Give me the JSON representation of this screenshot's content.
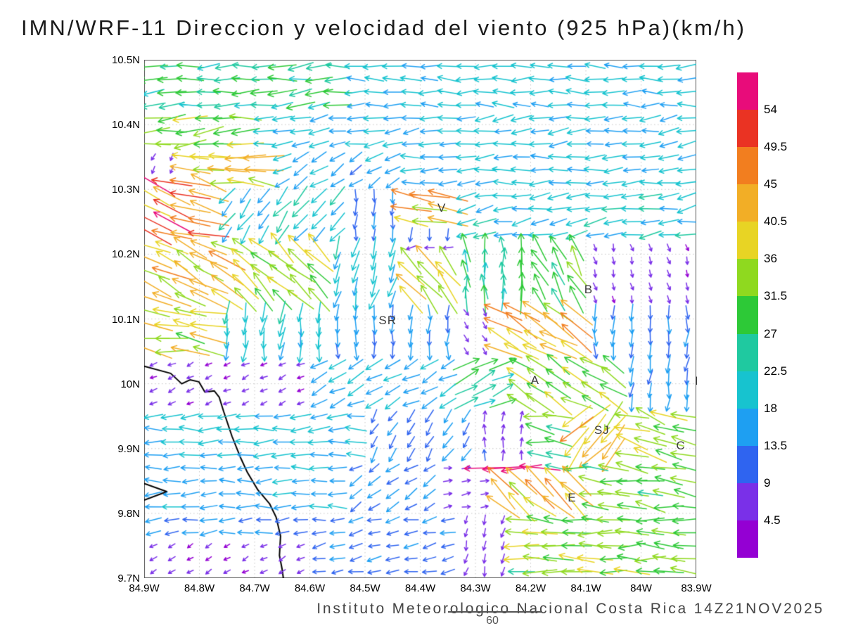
{
  "title": "IMN/WRF-11 Direccion y velocidad del viento (925 hPa)(km/h)",
  "footer": {
    "credit": "Instituto Meteorologico Nacional Costa Rica 14Z21NOV2025",
    "frame_number": "60"
  },
  "chart_data": {
    "type": "scatter",
    "subtype": "wind-vector-field",
    "title": "IMN/WRF-11 Direccion y velocidad del viento (925 hPa)(km/h)",
    "xlim": [
      -84.9,
      -83.9
    ],
    "ylim": [
      9.7,
      10.5
    ],
    "grid": true,
    "grid_cols": 30,
    "grid_rows": 40,
    "x_tick_values": [
      -84.9,
      -84.8,
      -84.7,
      -84.6,
      -84.5,
      -84.4,
      -84.3,
      -84.2,
      -84.1,
      -84.0,
      -83.9
    ],
    "x_tick_labels": [
      "84.9W",
      "84.8W",
      "84.7W",
      "84.6W",
      "84.5W",
      "84.4W",
      "84.3W",
      "84.2W",
      "84.1W",
      "84W",
      "83.9W"
    ],
    "y_tick_values": [
      10.5,
      10.4,
      10.3,
      10.2,
      10.1,
      10.0,
      9.9,
      9.8,
      9.7
    ],
    "y_tick_labels": [
      "10.5N",
      "10.4N",
      "10.3N",
      "10.2N",
      "10.1N",
      "10N",
      "9.9N",
      "9.8N",
      "9.7N"
    ],
    "colorbar": {
      "ticks_top_to_bottom": [
        54,
        49.5,
        45,
        40.5,
        36,
        31.5,
        27,
        22.5,
        18,
        13.5,
        9,
        4.5
      ],
      "colors_low_to_high": [
        "#9400d3",
        "#7a30e8",
        "#2f64f0",
        "#1e9ff2",
        "#17c3cf",
        "#1fc9a0",
        "#2dc937",
        "#8fd91f",
        "#e8d424",
        "#f2ae26",
        "#f27e1f",
        "#ea3323",
        "#e80c7a"
      ],
      "bin_size": 4.5
    },
    "stations": [
      {
        "label": "V",
        "lon": -84.361,
        "lat": 10.271
      },
      {
        "label": "B",
        "lon": -84.095,
        "lat": 10.145
      },
      {
        "label": "SR",
        "lon": -84.459,
        "lat": 10.097
      },
      {
        "label": "A",
        "lon": -84.192,
        "lat": 10.005
      },
      {
        "label": "SJ",
        "lon": -84.071,
        "lat": 9.928
      },
      {
        "label": "C",
        "lon": -83.928,
        "lat": 9.904
      },
      {
        "label": "E",
        "lon": -84.125,
        "lat": 9.824
      },
      {
        "label": "I",
        "lon": -83.899,
        "lat": 10.004
      }
    ],
    "coastlines": [
      [
        [
          -84.9,
          10.027
        ],
        [
          -84.852,
          10.016
        ],
        [
          -84.832,
          10.0
        ],
        [
          -84.817,
          10.006
        ],
        [
          -84.801,
          10.003
        ],
        [
          -84.79,
          9.987
        ],
        [
          -84.773,
          9.989
        ],
        [
          -84.764,
          9.979
        ],
        [
          -84.756,
          9.957
        ],
        [
          -84.741,
          9.919
        ],
        [
          -84.726,
          9.887
        ],
        [
          -84.713,
          9.863
        ],
        [
          -84.694,
          9.836
        ],
        [
          -84.673,
          9.815
        ],
        [
          -84.661,
          9.794
        ],
        [
          -84.653,
          9.765
        ],
        [
          -84.655,
          9.735
        ],
        [
          -84.65,
          9.713
        ],
        [
          -84.648,
          9.7
        ]
      ],
      [
        [
          -84.9,
          9.846
        ],
        [
          -84.859,
          9.8335
        ],
        [
          -84.9,
          9.8205
        ]
      ]
    ],
    "wind_regions": [
      {
        "lat": [
          9.858,
          9.886
        ],
        "lon": [
          -84.305,
          -84.175
        ],
        "dir": 182,
        "spd": 56
      },
      {
        "lat": [
          9.806,
          9.854
        ],
        "lon": [
          -84.25,
          -84.115
        ],
        "dir": 140,
        "spd": 41
      },
      {
        "lat": [
          10.04,
          10.125
        ],
        "lon": [
          -84.255,
          -84.1
        ],
        "dir": 148,
        "spd": 43
      },
      {
        "lat": [
          10.12,
          10.205
        ],
        "lon": [
          -84.435,
          -84.32
        ],
        "dir": 130,
        "spd": 38
      },
      {
        "lat": [
          10.24,
          10.305
        ],
        "lon": [
          -84.43,
          -84.33
        ],
        "dir": 168,
        "spd": 40
      },
      {
        "lat": [
          10.22,
          10.315
        ],
        "lon": [
          -84.9,
          -84.775
        ],
        "dir": 162,
        "spd": 46
      },
      {
        "lat": [
          9.88,
          9.962
        ],
        "lon": [
          -84.135,
          -84.04
        ],
        "dir": 228,
        "spd": 40
      },
      {
        "lat": [
          9.958,
          10.042
        ],
        "lon": [
          -84.35,
          -84.22
        ],
        "dir": 28,
        "spd": 26
      },
      {
        "lat": [
          10.12,
          10.225
        ],
        "lon": [
          -84.32,
          -84.2
        ],
        "dir": 95,
        "spd": 26
      },
      {
        "lat": [
          10.295,
          10.36
        ],
        "lon": [
          -84.9,
          -84.825
        ],
        "dir": 240,
        "spd": 6
      },
      {
        "lat": [
          10.115,
          10.225
        ],
        "lon": [
          -84.115,
          -83.9
        ],
        "dir": 285,
        "spd": 5
      },
      {
        "lat": [
          9.955,
          10.045
        ],
        "lon": [
          -84.9,
          -84.6
        ],
        "dir": 205,
        "spd": 5
      },
      {
        "lat": [
          10.04,
          10.12
        ],
        "lon": [
          -84.35,
          -84.25
        ],
        "dir": 300,
        "spd": 5
      },
      {
        "lat": [
          9.7,
          9.762
        ],
        "lon": [
          -84.9,
          -84.6
        ],
        "dir": 210,
        "spd": 5
      },
      {
        "lat": [
          9.8,
          9.882
        ],
        "lon": [
          -84.36,
          -84.27
        ],
        "dir": 10,
        "spd": 6
      },
      {
        "lat": [
          9.7,
          9.8
        ],
        "lon": [
          -84.35,
          -84.22
        ],
        "dir": 255,
        "spd": 7
      },
      {
        "lat": [
          10.42,
          10.5
        ],
        "lon": [
          -84.9,
          -84.55
        ],
        "dir": 185,
        "spd": 26
      },
      {
        "lat": [
          10.42,
          10.5
        ],
        "lon": [
          -84.55,
          -83.9
        ],
        "dir": 180,
        "spd": 19
      },
      {
        "lat": [
          10.355,
          10.42
        ],
        "lon": [
          -84.9,
          -84.7
        ],
        "dir": 185,
        "spd": 33
      },
      {
        "lat": [
          10.355,
          10.42
        ],
        "lon": [
          -84.7,
          -83.9
        ],
        "dir": 188,
        "spd": 18
      },
      {
        "lat": [
          10.295,
          10.355
        ],
        "lon": [
          -84.825,
          -84.66
        ],
        "dir": 175,
        "spd": 38
      },
      {
        "lat": [
          10.295,
          10.355
        ],
        "lon": [
          -84.66,
          -84.45
        ],
        "dir": 212,
        "spd": 16
      },
      {
        "lat": [
          10.295,
          10.355
        ],
        "lon": [
          -84.45,
          -83.9
        ],
        "dir": 183,
        "spd": 19
      },
      {
        "lat": [
          10.22,
          10.295
        ],
        "lon": [
          -84.775,
          -84.55
        ],
        "dir": 232,
        "spd": 20
      },
      {
        "lat": [
          10.22,
          10.295
        ],
        "lon": [
          -84.55,
          -84.43
        ],
        "dir": 268,
        "spd": 12
      },
      {
        "lat": [
          10.22,
          10.295
        ],
        "lon": [
          -84.43,
          -84.33
        ],
        "dir": 265,
        "spd": 12
      },
      {
        "lat": [
          10.22,
          10.295
        ],
        "lon": [
          -84.33,
          -83.9
        ],
        "dir": 190,
        "spd": 20
      },
      {
        "lat": [
          10.12,
          10.22
        ],
        "lon": [
          -84.9,
          -84.74
        ],
        "dir": 152,
        "spd": 41
      },
      {
        "lat": [
          10.12,
          10.22
        ],
        "lon": [
          -84.74,
          -84.58
        ],
        "dir": 137,
        "spd": 34
      },
      {
        "lat": [
          10.12,
          10.22
        ],
        "lon": [
          -84.58,
          -84.435
        ],
        "dir": 255,
        "spd": 20
      },
      {
        "lat": [
          10.12,
          10.22
        ],
        "lon": [
          -84.2,
          -84.115
        ],
        "dir": 120,
        "spd": 30
      },
      {
        "lat": [
          10.04,
          10.12
        ],
        "lon": [
          -84.9,
          -84.77
        ],
        "dir": 172,
        "spd": 36
      },
      {
        "lat": [
          10.04,
          10.12
        ],
        "lon": [
          -84.77,
          -84.58
        ],
        "dir": 262,
        "spd": 20
      },
      {
        "lat": [
          10.04,
          10.12
        ],
        "lon": [
          -84.58,
          -84.35
        ],
        "dir": 268,
        "spd": 15
      },
      {
        "lat": [
          10.04,
          10.12
        ],
        "lon": [
          -84.1,
          -83.9
        ],
        "dir": 268,
        "spd": 14
      },
      {
        "lat": [
          9.955,
          10.04
        ],
        "lon": [
          -84.6,
          -84.35
        ],
        "dir": 208,
        "spd": 17
      },
      {
        "lat": [
          9.955,
          10.04
        ],
        "lon": [
          -84.22,
          -84.04
        ],
        "dir": 150,
        "spd": 33
      },
      {
        "lat": [
          9.955,
          10.04
        ],
        "lon": [
          -84.04,
          -83.9
        ],
        "dir": 262,
        "spd": 15
      },
      {
        "lat": [
          9.88,
          9.955
        ],
        "lon": [
          -84.9,
          -84.5
        ],
        "dir": 182,
        "spd": 19
      },
      {
        "lat": [
          9.88,
          9.955
        ],
        "lon": [
          -84.5,
          -84.3
        ],
        "dir": 238,
        "spd": 13
      },
      {
        "lat": [
          9.88,
          9.955
        ],
        "lon": [
          -84.3,
          -84.2
        ],
        "dir": 88,
        "spd": 8
      },
      {
        "lat": [
          9.88,
          9.955
        ],
        "lon": [
          -84.2,
          -84.135
        ],
        "dir": 172,
        "spd": 29
      },
      {
        "lat": [
          9.88,
          9.955
        ],
        "lon": [
          -84.04,
          -83.9
        ],
        "dir": 162,
        "spd": 34
      },
      {
        "lat": [
          9.8,
          9.88
        ],
        "lon": [
          -84.9,
          -84.55
        ],
        "dir": 182,
        "spd": 16
      },
      {
        "lat": [
          9.8,
          9.88
        ],
        "lon": [
          -84.55,
          -84.36
        ],
        "dir": 212,
        "spd": 13
      },
      {
        "lat": [
          9.8,
          9.88
        ],
        "lon": [
          -84.175,
          -83.9
        ],
        "dir": 172,
        "spd": 30
      },
      {
        "lat": [
          9.762,
          9.8
        ],
        "lon": [
          -84.9,
          -84.58
        ],
        "dir": 185,
        "spd": 14
      },
      {
        "lat": [
          9.7,
          9.8
        ],
        "lon": [
          -84.62,
          -84.35
        ],
        "dir": 192,
        "spd": 12
      },
      {
        "lat": [
          9.7,
          9.8
        ],
        "lon": [
          -84.22,
          -83.9
        ],
        "dir": 178,
        "spd": 32
      },
      {
        "lat": [
          9.7,
          10.5
        ],
        "lon": [
          -84.9,
          -83.9
        ],
        "dir": 190,
        "spd": 9
      }
    ]
  }
}
